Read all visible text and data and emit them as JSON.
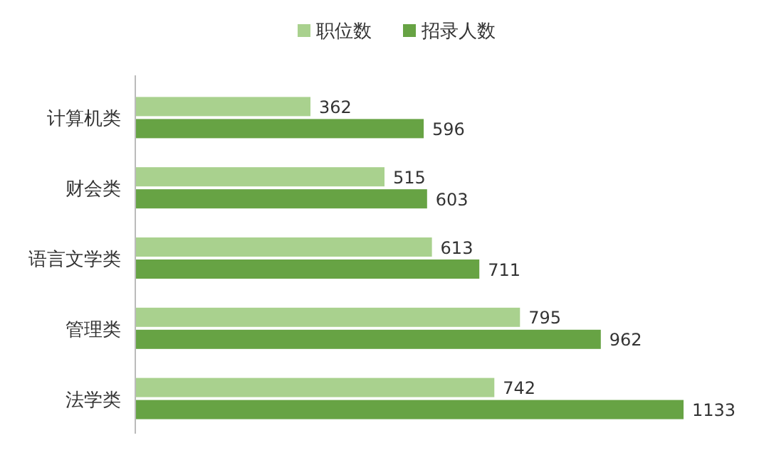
{
  "chart_data": {
    "type": "bar",
    "orientation": "horizontal",
    "categories": [
      "计算机类",
      "财会类",
      "语言文学类",
      "管理类",
      "法学类"
    ],
    "series": [
      {
        "name": "职位数",
        "color": "#a9d18e",
        "values": [
          362,
          515,
          613,
          795,
          742
        ]
      },
      {
        "name": "招录人数",
        "color": "#67a344",
        "values": [
          596,
          603,
          711,
          962,
          1133
        ]
      }
    ],
    "data_labels": true,
    "legend": "top"
  }
}
